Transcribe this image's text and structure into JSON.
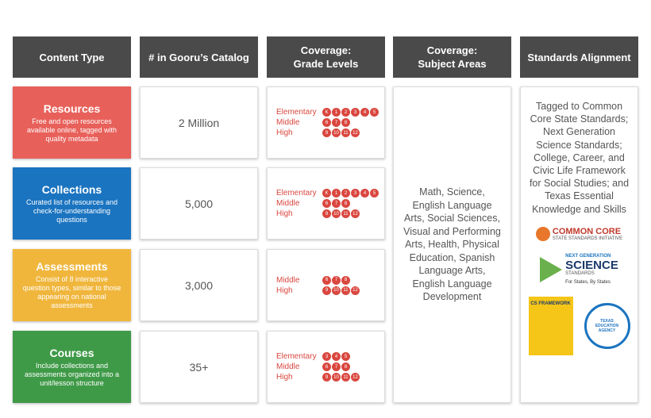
{
  "headers": [
    "Content Type",
    "# in Gooru’s Catalog",
    "Coverage:\nGrade Levels",
    "Coverage:\nSubject Areas",
    "Standards Alignment"
  ],
  "rows": [
    {
      "title": "Resources",
      "description": "Free and open resources available online, tagged with quality metadata",
      "color": "#e8605a",
      "catalog": "2 Million",
      "grades": [
        {
          "label": "Elementary",
          "grades": [
            "K",
            "1",
            "2",
            "3",
            "4",
            "5"
          ]
        },
        {
          "label": "Middle",
          "grades": [
            "6",
            "7",
            "8"
          ]
        },
        {
          "label": "High",
          "grades": [
            "9",
            "10",
            "11",
            "12"
          ]
        }
      ]
    },
    {
      "title": "Collections",
      "description": "Curated list of resources and check-for-understanding questions",
      "color": "#1b74c0",
      "catalog": "5,000",
      "grades": [
        {
          "label": "Elementary",
          "grades": [
            "K",
            "1",
            "2",
            "3",
            "4",
            "5"
          ]
        },
        {
          "label": "Middle",
          "grades": [
            "6",
            "7",
            "8"
          ]
        },
        {
          "label": "High",
          "grades": [
            "9",
            "10",
            "11",
            "12"
          ]
        }
      ]
    },
    {
      "title": "Assessments",
      "description": "Consist of 8 interactive question types, similar to those appearing on national assessments",
      "color": "#f0b63c",
      "catalog": "3,000",
      "grades": [
        {
          "label": "Middle",
          "grades": [
            "6",
            "7",
            "8"
          ]
        },
        {
          "label": "High",
          "grades": [
            "9",
            "10",
            "11",
            "12"
          ]
        }
      ]
    },
    {
      "title": "Courses",
      "description": "Include collections and assessments organized into a unit/lesson structure",
      "color": "#3f9a48",
      "catalog": "35+",
      "grades": [
        {
          "label": "Elementary",
          "grades": [
            "3",
            "4",
            "5"
          ]
        },
        {
          "label": "Middle",
          "grades": [
            "6",
            "7",
            "8"
          ]
        },
        {
          "label": "High",
          "grades": [
            "9",
            "10",
            "11",
            "12"
          ]
        }
      ]
    }
  ],
  "subject_areas": "Math, Science, English Language Arts, Social Sciences, Visual and Performing Arts, Health, Physical Education, Spanish Language Arts, English Language Development",
  "standards_alignment": "Tagged to Common Core State Standards; Next Generation Science Standards; College, Career, and Civic Life Framework for Social Studies; and Texas Essential Knowledge and Skills",
  "logos": {
    "common_core": "COMMON CORE",
    "common_core_sub": "STATE STANDARDS INITIATIVE",
    "ngss_top": "NEXT GENERATION",
    "ngss_main": "SCIENCE",
    "ngss_sub": "STANDARDS",
    "ngss_tag": "For States, By States",
    "cs": "CS FRAMEWORK",
    "tea": "TEXAS EDUCATION AGENCY"
  }
}
